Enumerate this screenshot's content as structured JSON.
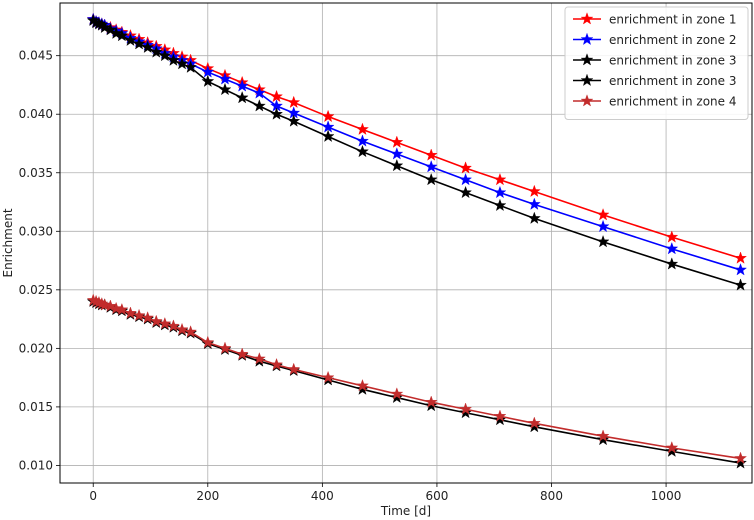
{
  "chart_data": {
    "type": "line",
    "xlabel": "Time [d]",
    "ylabel": "Enrichment",
    "xlim": [
      -58,
      1150
    ],
    "ylim": [
      0.0085,
      0.0495
    ],
    "xticks": [
      0,
      200,
      400,
      600,
      800,
      1000
    ],
    "yticks": [
      0.01,
      0.015,
      0.02,
      0.025,
      0.03,
      0.035,
      0.04,
      0.045
    ],
    "grid": true,
    "legend_position": "top-right",
    "x": [
      0,
      5,
      10,
      15,
      20,
      30,
      40,
      50,
      65,
      80,
      95,
      110,
      125,
      140,
      155,
      170,
      200,
      230,
      260,
      290,
      320,
      350,
      410,
      470,
      530,
      590,
      650,
      710,
      770,
      890,
      1010,
      1130
    ],
    "series": [
      {
        "name": "enrichment in zone 1",
        "color": "#ff0000",
        "values": [
          0.0481,
          0.0479,
          0.0478,
          0.0477,
          0.0476,
          0.0474,
          0.0472,
          0.047,
          0.0467,
          0.0464,
          0.0461,
          0.0458,
          0.0455,
          0.0452,
          0.0449,
          0.0446,
          0.0439,
          0.0433,
          0.0427,
          0.0421,
          0.0415,
          0.041,
          0.0398,
          0.0387,
          0.0376,
          0.0365,
          0.0354,
          0.0344,
          0.0334,
          0.0314,
          0.0295,
          0.0277
        ]
      },
      {
        "name": "enrichment in zone 2",
        "color": "#0000ff",
        "values": [
          0.0481,
          0.0479,
          0.0478,
          0.0477,
          0.0476,
          0.0473,
          0.0471,
          0.0469,
          0.0465,
          0.0462,
          0.0459,
          0.0456,
          0.0452,
          0.0449,
          0.0446,
          0.0443,
          0.0436,
          0.043,
          0.0424,
          0.0418,
          0.0407,
          0.0401,
          0.0389,
          0.0377,
          0.0366,
          0.0355,
          0.0344,
          0.0333,
          0.0323,
          0.0304,
          0.0285,
          0.0267
        ]
      },
      {
        "name": "enrichment in zone 3",
        "color": "#000000",
        "values": [
          0.048,
          0.0478,
          0.0477,
          0.0476,
          0.0474,
          0.0472,
          0.0469,
          0.0467,
          0.0463,
          0.046,
          0.0457,
          0.0453,
          0.045,
          0.0446,
          0.0443,
          0.044,
          0.0428,
          0.0421,
          0.0414,
          0.0407,
          0.04,
          0.0394,
          0.0381,
          0.0368,
          0.0356,
          0.0344,
          0.0333,
          0.0322,
          0.0311,
          0.0291,
          0.0272,
          0.0254
        ]
      },
      {
        "name": "enrichment in zone 3",
        "color": "#000000",
        "values": [
          0.024,
          0.0239,
          0.0238,
          0.0237,
          0.0237,
          0.0235,
          0.0233,
          0.0232,
          0.0229,
          0.0227,
          0.0225,
          0.0222,
          0.022,
          0.0218,
          0.0215,
          0.0213,
          0.0204,
          0.0199,
          0.0194,
          0.0189,
          0.0185,
          0.0181,
          0.0173,
          0.0165,
          0.0158,
          0.0151,
          0.0145,
          0.0139,
          0.0133,
          0.0122,
          0.0112,
          0.0102
        ]
      },
      {
        "name": "enrichment in zone 4",
        "color": "#c22c2c",
        "values": [
          0.0241,
          0.024,
          0.0239,
          0.0238,
          0.0237,
          0.0236,
          0.0234,
          0.0233,
          0.023,
          0.0228,
          0.0226,
          0.0223,
          0.0221,
          0.0219,
          0.0216,
          0.0214,
          0.0205,
          0.02,
          0.0195,
          0.0191,
          0.0186,
          0.0182,
          0.0175,
          0.0168,
          0.0161,
          0.0154,
          0.0148,
          0.0142,
          0.0136,
          0.0125,
          0.0115,
          0.0106
        ]
      }
    ]
  }
}
